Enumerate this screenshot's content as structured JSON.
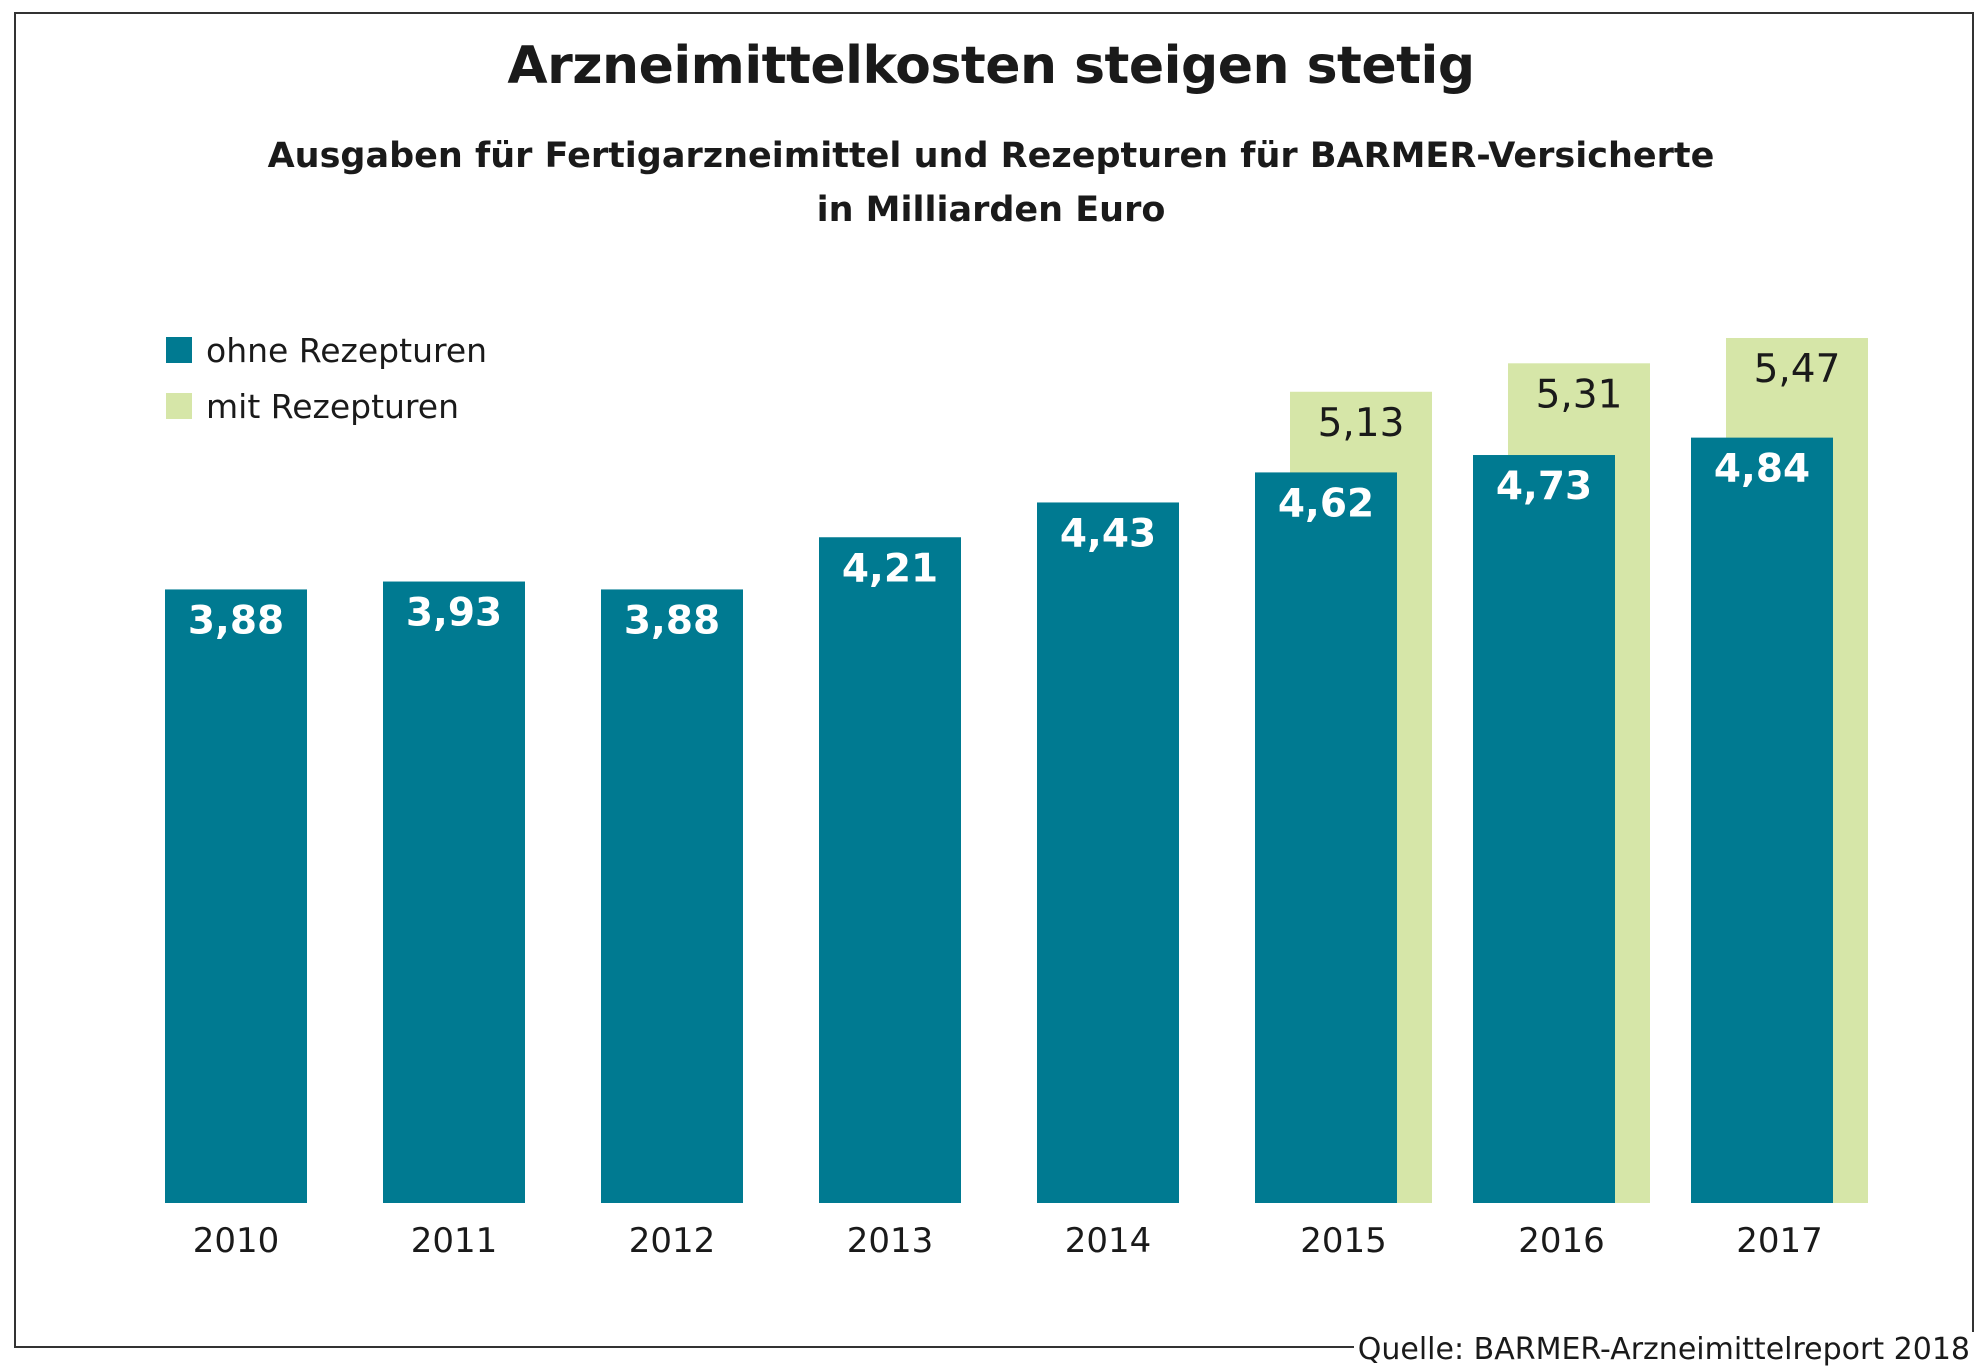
{
  "chart_data": {
    "type": "bar",
    "title": "Arzneimittelkosten steigen stetig",
    "subtitle_lines": [
      "Ausgaben für Fertigarzneimittel und Rezepturen für BARMER-Versicherte",
      "in Milliarden Euro"
    ],
    "categories": [
      "2010",
      "2011",
      "2012",
      "2013",
      "2014",
      "2015",
      "2016",
      "2017"
    ],
    "series": [
      {
        "name": "ohne Rezepturen",
        "values": [
          3.88,
          3.93,
          3.88,
          4.21,
          4.43,
          4.62,
          4.73,
          4.84
        ],
        "labels": [
          "3,88",
          "3,93",
          "3,88",
          "4,21",
          "4,43",
          "4,62",
          "4,73",
          "4,84"
        ],
        "color": "#007a91"
      },
      {
        "name": "mit Rezepturen",
        "values": [
          null,
          null,
          null,
          null,
          null,
          5.13,
          5.31,
          5.47
        ],
        "labels": [
          "",
          "",
          "",
          "",
          "",
          "5,13",
          "5,31",
          "5,47"
        ],
        "color": "#d6e6a8"
      }
    ],
    "ylim": [
      0,
      5.47
    ],
    "grid": false,
    "legend": "top-left",
    "source": "Quelle: BARMER-Arzneimittelreport 2018"
  }
}
